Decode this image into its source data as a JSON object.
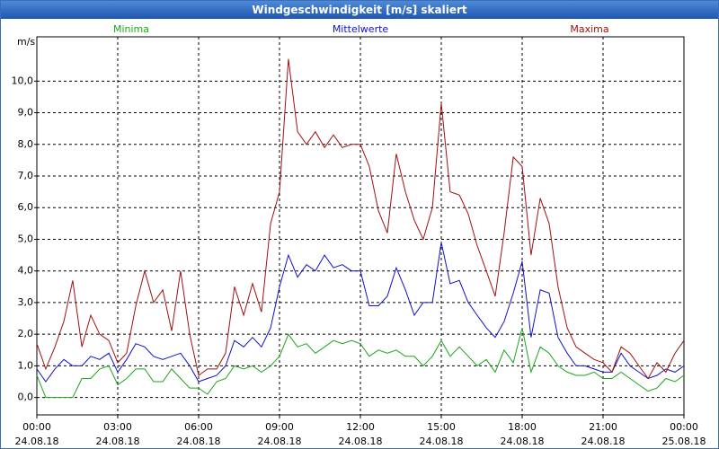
{
  "chart_data": {
    "type": "line",
    "title": "Windgeschwindigkeit [m/s] skaliert",
    "y_label": "m/s",
    "xlim": [
      0,
      24
    ],
    "xticks": [
      {
        "value": 0,
        "label": "00:00",
        "date": "24.08.18"
      },
      {
        "value": 3,
        "label": "03:00",
        "date": "24.08.18"
      },
      {
        "value": 6,
        "label": "06:00",
        "date": "24.08.18"
      },
      {
        "value": 9,
        "label": "09:00",
        "date": "24.08.18"
      },
      {
        "value": 12,
        "label": "12:00",
        "date": "24.08.18"
      },
      {
        "value": 15,
        "label": "15:00",
        "date": "24.08.18"
      },
      {
        "value": 18,
        "label": "18:00",
        "date": "24.08.18"
      },
      {
        "value": 21,
        "label": "21:00",
        "date": "24.08.18"
      },
      {
        "value": 24,
        "label": "00:00",
        "date": "25.08.18"
      }
    ],
    "ylim": [
      -0.55,
      11.4
    ],
    "yticks": [
      {
        "value": 0,
        "label": "0,0"
      },
      {
        "value": 1,
        "label": "1,0"
      },
      {
        "value": 2,
        "label": "2,0"
      },
      {
        "value": 3,
        "label": "3,0"
      },
      {
        "value": 4,
        "label": "4,0"
      },
      {
        "value": 5,
        "label": "5,0"
      },
      {
        "value": 6,
        "label": "6,0"
      },
      {
        "value": 7,
        "label": "7,0"
      },
      {
        "value": 8,
        "label": "8,0"
      },
      {
        "value": 9,
        "label": "9,0"
      },
      {
        "value": 10,
        "label": "10,0"
      }
    ],
    "grid": true,
    "x": [
      0,
      0.33,
      0.67,
      1,
      1.33,
      1.67,
      2,
      2.33,
      2.67,
      3,
      3.33,
      3.67,
      4,
      4.33,
      4.67,
      5,
      5.33,
      5.67,
      6,
      6.33,
      6.67,
      7,
      7.33,
      7.67,
      8,
      8.33,
      8.67,
      9,
      9.33,
      9.67,
      10,
      10.33,
      10.67,
      11,
      11.33,
      11.67,
      12,
      12.33,
      12.67,
      13,
      13.33,
      13.67,
      14,
      14.33,
      14.67,
      15,
      15.33,
      15.67,
      16,
      16.33,
      16.67,
      17,
      17.33,
      17.67,
      18,
      18.33,
      18.67,
      19,
      19.33,
      19.67,
      20,
      20.33,
      20.67,
      21,
      21.33,
      21.67,
      22,
      22.33,
      22.67,
      23,
      23.33,
      23.67,
      24
    ],
    "series": [
      {
        "name": "Minima",
        "color": "#1aa51a",
        "values": [
          0.7,
          0.0,
          0.0,
          0.0,
          0.0,
          0.6,
          0.6,
          0.9,
          1.0,
          0.4,
          0.6,
          0.9,
          0.9,
          0.5,
          0.5,
          0.9,
          0.6,
          0.3,
          0.3,
          0.1,
          0.5,
          0.6,
          1.0,
          0.9,
          1.0,
          0.8,
          1.0,
          1.3,
          2.0,
          1.6,
          1.7,
          1.4,
          1.6,
          1.8,
          1.7,
          1.8,
          1.7,
          1.3,
          1.5,
          1.4,
          1.5,
          1.3,
          1.3,
          1.0,
          1.3,
          1.8,
          1.3,
          1.6,
          1.3,
          1.0,
          1.2,
          0.8,
          1.5,
          1.1,
          2.2,
          0.8,
          1.6,
          1.4,
          1.0,
          0.8,
          0.7,
          0.7,
          0.8,
          0.6,
          0.6,
          0.8,
          0.6,
          0.4,
          0.2,
          0.3,
          0.6,
          0.5,
          0.7
        ]
      },
      {
        "name": "Mittelwerte",
        "color": "#1010c8",
        "values": [
          0.9,
          0.5,
          0.9,
          1.2,
          1.0,
          1.0,
          1.3,
          1.2,
          1.4,
          0.8,
          1.2,
          1.7,
          1.6,
          1.3,
          1.2,
          1.3,
          1.4,
          1.0,
          0.5,
          0.6,
          0.7,
          1.0,
          1.8,
          1.6,
          1.9,
          1.6,
          2.2,
          3.5,
          4.5,
          3.8,
          4.2,
          4.0,
          4.5,
          4.1,
          4.2,
          4.0,
          4.0,
          2.9,
          2.9,
          3.2,
          4.1,
          3.4,
          2.6,
          3.0,
          3.0,
          4.9,
          3.6,
          3.7,
          3.0,
          2.6,
          2.2,
          1.9,
          2.4,
          3.3,
          4.3,
          1.9,
          3.4,
          3.3,
          1.9,
          1.4,
          1.0,
          1.0,
          0.9,
          0.8,
          0.8,
          1.4,
          1.0,
          0.8,
          0.6,
          0.7,
          0.9,
          0.8,
          1.0
        ]
      },
      {
        "name": "Maxima",
        "color": "#a01010",
        "values": [
          1.7,
          0.9,
          1.6,
          2.4,
          3.7,
          1.6,
          2.6,
          2.0,
          1.8,
          1.1,
          1.4,
          2.9,
          4.0,
          3.0,
          3.4,
          2.1,
          4.0,
          2.0,
          0.7,
          0.9,
          0.9,
          1.4,
          3.5,
          2.6,
          3.6,
          2.7,
          5.5,
          6.5,
          10.7,
          8.4,
          8.0,
          8.4,
          7.9,
          8.3,
          7.9,
          8.0,
          8.0,
          7.3,
          5.9,
          5.2,
          7.7,
          6.5,
          5.6,
          5.0,
          6.0,
          9.3,
          6.5,
          6.4,
          5.8,
          4.8,
          4.0,
          3.2,
          5.2,
          7.6,
          7.3,
          4.5,
          6.3,
          5.5,
          3.5,
          2.2,
          1.6,
          1.4,
          1.2,
          1.1,
          0.8,
          1.6,
          1.4,
          1.0,
          0.6,
          1.1,
          0.8,
          1.4,
          1.8
        ]
      }
    ]
  }
}
